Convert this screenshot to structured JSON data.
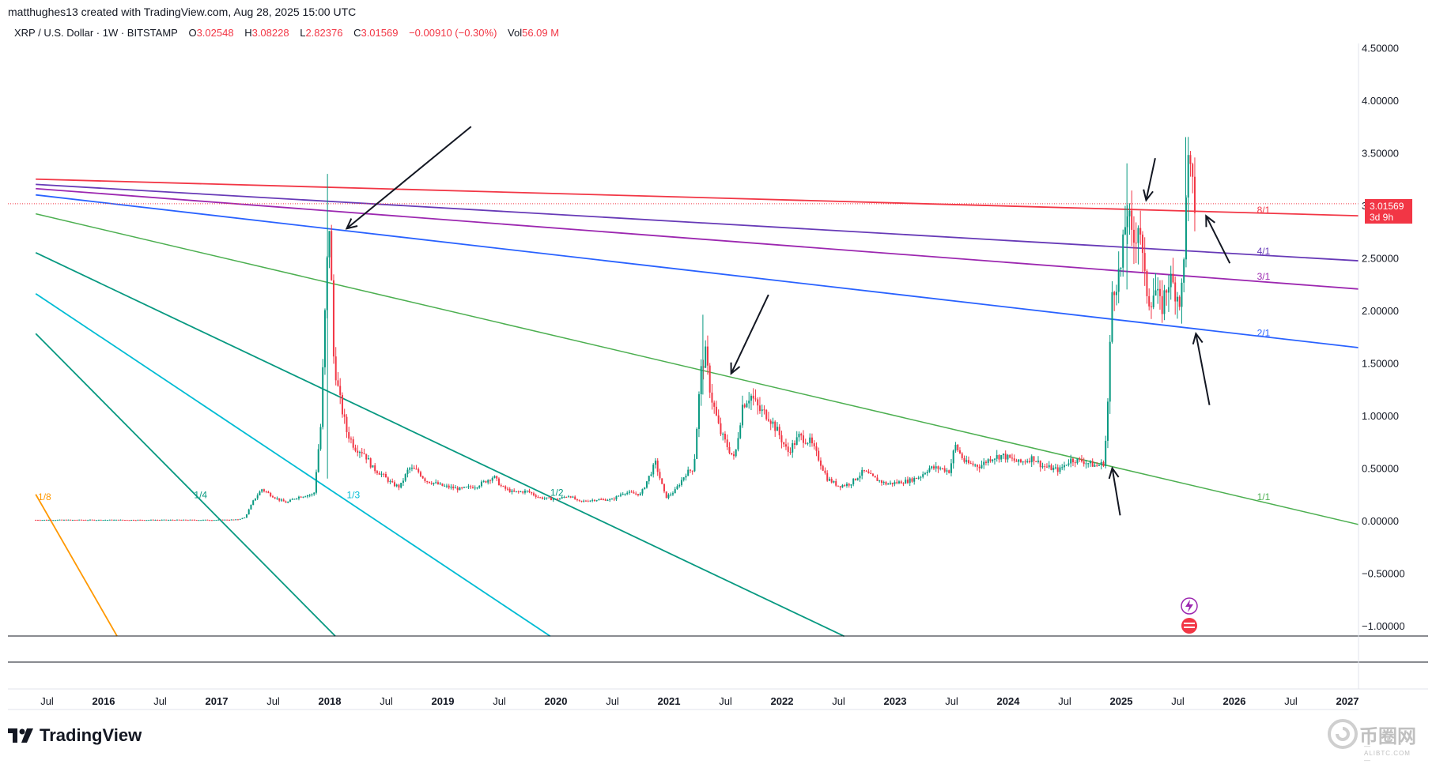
{
  "header": {
    "text": "matthughes13 created with TradingView.com, Aug 28, 2025 15:00 UTC"
  },
  "legend": {
    "symbol": "XRP / U.S. Dollar · 1W · BITSTAMP",
    "open_label": "O",
    "open": "3.02548",
    "high_label": "H",
    "high": "3.08228",
    "low_label": "L",
    "low": "2.82376",
    "close_label": "C",
    "close": "3.01569",
    "change": "−0.00910 (−0.30%)",
    "vol_label": "Vol",
    "vol": "56.09 M"
  },
  "price_badge": {
    "price": "3.01569",
    "countdown": "3d 9h"
  },
  "brand": {
    "name": "TradingView"
  },
  "watermark": {
    "text": "币圈网",
    "sub": "—ALIBTC.COM—"
  },
  "colors": {
    "up": "#089981",
    "down": "#f23645",
    "red_line": "#f23645",
    "purple": "#9c27b0",
    "navy_purple": "#673ab7",
    "blue": "#2962ff",
    "green": "#4caf50",
    "teal": "#089981",
    "cyan": "#00bcd4",
    "orange": "#ff9800"
  },
  "chart_data": {
    "type": "candlestick",
    "interval": "1W",
    "x_range": [
      2015.4,
      2027.25
    ],
    "ylim": [
      -1.1,
      4.7
    ],
    "y_ticks": [
      "4.50000",
      "4.00000",
      "3.50000",
      "3.00000",
      "2.50000",
      "2.00000",
      "1.50000",
      "1.00000",
      "0.50000",
      "0.00000",
      "−0.50000",
      "−1.00000"
    ],
    "y_tick_values": [
      4.5,
      4.0,
      3.5,
      3.0,
      2.5,
      2.0,
      1.5,
      1.0,
      0.5,
      0.0,
      -0.5,
      -1.0
    ],
    "x_ticks": [
      {
        "label": "Jul",
        "t": 2015.5,
        "bold": false
      },
      {
        "label": "2016",
        "t": 2016.0,
        "bold": true
      },
      {
        "label": "Jul",
        "t": 2016.5,
        "bold": false
      },
      {
        "label": "2017",
        "t": 2017.0,
        "bold": true
      },
      {
        "label": "Jul",
        "t": 2017.5,
        "bold": false
      },
      {
        "label": "2018",
        "t": 2018.0,
        "bold": true
      },
      {
        "label": "Jul",
        "t": 2018.5,
        "bold": false
      },
      {
        "label": "2019",
        "t": 2019.0,
        "bold": true
      },
      {
        "label": "Jul",
        "t": 2019.5,
        "bold": false
      },
      {
        "label": "2020",
        "t": 2020.0,
        "bold": true
      },
      {
        "label": "Jul",
        "t": 2020.5,
        "bold": false
      },
      {
        "label": "2021",
        "t": 2021.0,
        "bold": true
      },
      {
        "label": "Jul",
        "t": 2021.5,
        "bold": false
      },
      {
        "label": "2022",
        "t": 2022.0,
        "bold": true
      },
      {
        "label": "Jul",
        "t": 2022.5,
        "bold": false
      },
      {
        "label": "2023",
        "t": 2023.0,
        "bold": true
      },
      {
        "label": "Jul",
        "t": 2023.5,
        "bold": false
      },
      {
        "label": "2024",
        "t": 2024.0,
        "bold": true
      },
      {
        "label": "Jul",
        "t": 2024.5,
        "bold": false
      },
      {
        "label": "2025",
        "t": 2025.0,
        "bold": true
      },
      {
        "label": "Jul",
        "t": 2025.5,
        "bold": false
      },
      {
        "label": "2026",
        "t": 2026.0,
        "bold": true
      },
      {
        "label": "Jul",
        "t": 2026.5,
        "bold": false
      },
      {
        "label": "2027",
        "t": 2027.0,
        "bold": true
      }
    ],
    "price_path": [
      [
        2015.4,
        0.007
      ],
      [
        2016.5,
        0.007
      ],
      [
        2017.0,
        0.007
      ],
      [
        2017.18,
        0.01
      ],
      [
        2017.25,
        0.03
      ],
      [
        2017.33,
        0.2
      ],
      [
        2017.4,
        0.3
      ],
      [
        2017.47,
        0.25
      ],
      [
        2017.55,
        0.2
      ],
      [
        2017.62,
        0.17
      ],
      [
        2017.7,
        0.22
      ],
      [
        2017.78,
        0.24
      ],
      [
        2017.86,
        0.25
      ],
      [
        2017.92,
        0.9
      ],
      [
        2017.97,
        2.3
      ],
      [
        2018.0,
        2.9
      ],
      [
        2018.03,
        1.6
      ],
      [
        2018.08,
        1.2
      ],
      [
        2018.15,
        0.85
      ],
      [
        2018.22,
        0.7
      ],
      [
        2018.3,
        0.65
      ],
      [
        2018.38,
        0.5
      ],
      [
        2018.45,
        0.45
      ],
      [
        2018.55,
        0.35
      ],
      [
        2018.62,
        0.32
      ],
      [
        2018.7,
        0.5
      ],
      [
        2018.78,
        0.47
      ],
      [
        2018.85,
        0.38
      ],
      [
        2018.92,
        0.36
      ],
      [
        2019.0,
        0.33
      ],
      [
        2019.15,
        0.3
      ],
      [
        2019.3,
        0.33
      ],
      [
        2019.45,
        0.42
      ],
      [
        2019.52,
        0.32
      ],
      [
        2019.62,
        0.27
      ],
      [
        2019.75,
        0.28
      ],
      [
        2019.85,
        0.22
      ],
      [
        2020.0,
        0.2
      ],
      [
        2020.12,
        0.24
      ],
      [
        2020.2,
        0.18
      ],
      [
        2020.35,
        0.2
      ],
      [
        2020.5,
        0.2
      ],
      [
        2020.6,
        0.27
      ],
      [
        2020.75,
        0.25
      ],
      [
        2020.88,
        0.55
      ],
      [
        2020.97,
        0.22
      ],
      [
        2021.05,
        0.28
      ],
      [
        2021.15,
        0.45
      ],
      [
        2021.22,
        0.5
      ],
      [
        2021.28,
        1.4
      ],
      [
        2021.32,
        1.6
      ],
      [
        2021.37,
        1.2
      ],
      [
        2021.45,
        0.85
      ],
      [
        2021.52,
        0.7
      ],
      [
        2021.58,
        0.58
      ],
      [
        2021.65,
        1.1
      ],
      [
        2021.72,
        1.2
      ],
      [
        2021.8,
        1.05
      ],
      [
        2021.88,
        1.0
      ],
      [
        2021.97,
        0.83
      ],
      [
        2022.05,
        0.65
      ],
      [
        2022.15,
        0.8
      ],
      [
        2022.25,
        0.75
      ],
      [
        2022.32,
        0.6
      ],
      [
        2022.4,
        0.4
      ],
      [
        2022.5,
        0.33
      ],
      [
        2022.6,
        0.35
      ],
      [
        2022.72,
        0.47
      ],
      [
        2022.82,
        0.4
      ],
      [
        2022.92,
        0.35
      ],
      [
        2023.0,
        0.36
      ],
      [
        2023.12,
        0.38
      ],
      [
        2023.22,
        0.42
      ],
      [
        2023.3,
        0.5
      ],
      [
        2023.4,
        0.5
      ],
      [
        2023.48,
        0.47
      ],
      [
        2023.53,
        0.72
      ],
      [
        2023.62,
        0.55
      ],
      [
        2023.75,
        0.52
      ],
      [
        2023.85,
        0.6
      ],
      [
        2023.95,
        0.62
      ],
      [
        2024.1,
        0.55
      ],
      [
        2024.22,
        0.6
      ],
      [
        2024.3,
        0.52
      ],
      [
        2024.45,
        0.48
      ],
      [
        2024.55,
        0.58
      ],
      [
        2024.65,
        0.57
      ],
      [
        2024.78,
        0.52
      ],
      [
        2024.85,
        0.55
      ],
      [
        2024.88,
        1.1
      ],
      [
        2024.92,
        2.2
      ],
      [
        2024.96,
        2.3
      ],
      [
        2025.0,
        2.4
      ],
      [
        2025.05,
        3.0
      ],
      [
        2025.1,
        2.6
      ],
      [
        2025.16,
        2.9
      ],
      [
        2025.2,
        2.3
      ],
      [
        2025.25,
        2.1
      ],
      [
        2025.3,
        2.2
      ],
      [
        2025.35,
        2.0
      ],
      [
        2025.42,
        2.3
      ],
      [
        2025.48,
        2.2
      ],
      [
        2025.52,
        2.1
      ],
      [
        2025.55,
        2.3
      ],
      [
        2025.58,
        3.45
      ],
      [
        2025.62,
        3.2
      ],
      [
        2025.65,
        3.0
      ]
    ],
    "trend_lines": [
      {
        "p1": [
          2015.4,
          3.25
        ],
        "p2": [
          2027.15,
          2.9
        ],
        "color": "#f23645",
        "width": 1.8,
        "label": "8/1",
        "label_t": 2026.2,
        "label_v": 2.91
      },
      {
        "p1": [
          2015.4,
          3.2
        ],
        "p2": [
          2027.15,
          2.47
        ],
        "color": "#673ab7",
        "width": 1.8,
        "label": "4/1",
        "label_t": 2026.2,
        "label_v": 2.52
      },
      {
        "p1": [
          2015.4,
          3.16
        ],
        "p2": [
          2027.15,
          2.2
        ],
        "color": "#9c27b0",
        "width": 1.8,
        "label": "3/1",
        "label_t": 2026.2,
        "label_v": 2.28
      },
      {
        "p1": [
          2015.4,
          3.1
        ],
        "p2": [
          2027.15,
          1.64
        ],
        "color": "#2962ff",
        "width": 1.8,
        "label": "2/1",
        "label_t": 2026.2,
        "label_v": 1.74
      },
      {
        "p1": [
          2015.4,
          2.92
        ],
        "p2": [
          2027.15,
          -0.05
        ],
        "color": "#4caf50",
        "width": 1.5,
        "label": "1/1",
        "label_t": 2026.2,
        "label_v": 0.18
      },
      {
        "p1": [
          2015.4,
          2.55
        ],
        "p2": [
          2022.55,
          -1.1
        ],
        "color": "#089981",
        "width": 1.8,
        "label": "1/2",
        "label_t": 2019.95,
        "label_v": 0.22
      },
      {
        "p1": [
          2015.4,
          2.16
        ],
        "p2": [
          2019.95,
          -1.1
        ],
        "color": "#00bcd4",
        "width": 1.8,
        "label": "1/3",
        "label_t": 2018.15,
        "label_v": 0.2
      },
      {
        "p1": [
          2015.4,
          1.78
        ],
        "p2": [
          2018.05,
          -1.1
        ],
        "color": "#089981",
        "width": 1.8,
        "label": "1/4",
        "label_t": 2016.8,
        "label_v": 0.2
      },
      {
        "p1": [
          2015.4,
          0.25
        ],
        "p2": [
          2016.12,
          -1.1
        ],
        "color": "#ff9800",
        "width": 1.8,
        "label": "1/8",
        "label_t": 2015.42,
        "label_v": 0.18
      }
    ],
    "last_price": 3.01569,
    "annotations": {
      "arrows": [
        {
          "from": [
            2019.25,
            3.75
          ],
          "to": [
            2018.15,
            2.78
          ]
        },
        {
          "from": [
            2021.88,
            2.15
          ],
          "to": [
            2021.55,
            1.4
          ]
        },
        {
          "from": [
            2025.3,
            3.45
          ],
          "to": [
            2025.22,
            3.05
          ]
        },
        {
          "from": [
            2024.99,
            0.05
          ],
          "to": [
            2024.92,
            0.5
          ]
        },
        {
          "from": [
            2025.78,
            1.1
          ],
          "to": [
            2025.66,
            1.78
          ]
        },
        {
          "from": [
            2025.96,
            2.45
          ],
          "to": [
            2025.75,
            2.9
          ]
        },
        {
          "from": [
            2025.5,
            2.4
          ],
          "to": [
            2025.5,
            2.4
          ]
        }
      ]
    }
  }
}
